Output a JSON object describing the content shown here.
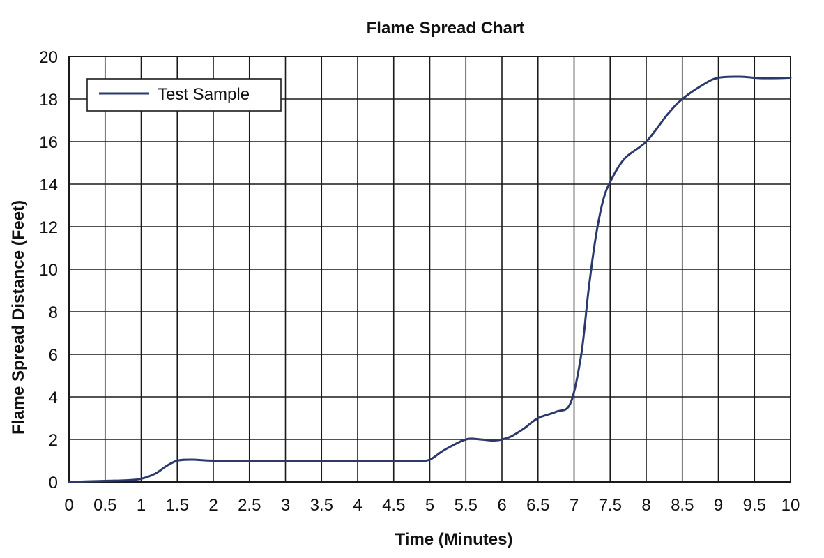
{
  "chart_data": {
    "type": "line",
    "title": "Flame Spread Chart",
    "xlabel": "Time (Minutes)",
    "ylabel": "Flame Spread Distance (Feet)",
    "xlim": [
      0,
      10
    ],
    "ylim": [
      0,
      20
    ],
    "x_ticks": [
      "0",
      "0.5",
      "1",
      "1.5",
      "2",
      "2.5",
      "3",
      "3.5",
      "4",
      "4.5",
      "5",
      "5.5",
      "6",
      "6.5",
      "7",
      "7.5",
      "8",
      "8.5",
      "9",
      "9.5",
      "10"
    ],
    "y_ticks": [
      "0",
      "2",
      "4",
      "6",
      "8",
      "10",
      "12",
      "14",
      "16",
      "18",
      "20"
    ],
    "grid": true,
    "legend_position": "top-left",
    "series": [
      {
        "name": "Test Sample",
        "color": "#2b3a6b",
        "x": [
          0,
          0.5,
          0.8,
          1.0,
          1.2,
          1.35,
          1.5,
          1.7,
          2.0,
          2.5,
          3.0,
          3.5,
          4.0,
          4.5,
          4.8,
          5.0,
          5.2,
          5.5,
          5.7,
          5.9,
          6.1,
          6.3,
          6.5,
          6.75,
          6.95,
          7.1,
          7.2,
          7.3,
          7.4,
          7.5,
          7.7,
          8.0,
          8.3,
          8.5,
          8.8,
          9.0,
          9.3,
          9.6,
          10.0
        ],
        "y": [
          0,
          0.05,
          0.08,
          0.15,
          0.4,
          0.75,
          1.0,
          1.05,
          1.0,
          1.0,
          1.0,
          1.0,
          1.0,
          1.0,
          0.97,
          1.05,
          1.5,
          2.0,
          2.0,
          1.95,
          2.1,
          2.5,
          3.0,
          3.3,
          3.7,
          6.0,
          9.0,
          11.5,
          13.2,
          14.1,
          15.2,
          16.0,
          17.3,
          18.0,
          18.7,
          19.0,
          19.05,
          18.98,
          19.0
        ]
      }
    ]
  }
}
